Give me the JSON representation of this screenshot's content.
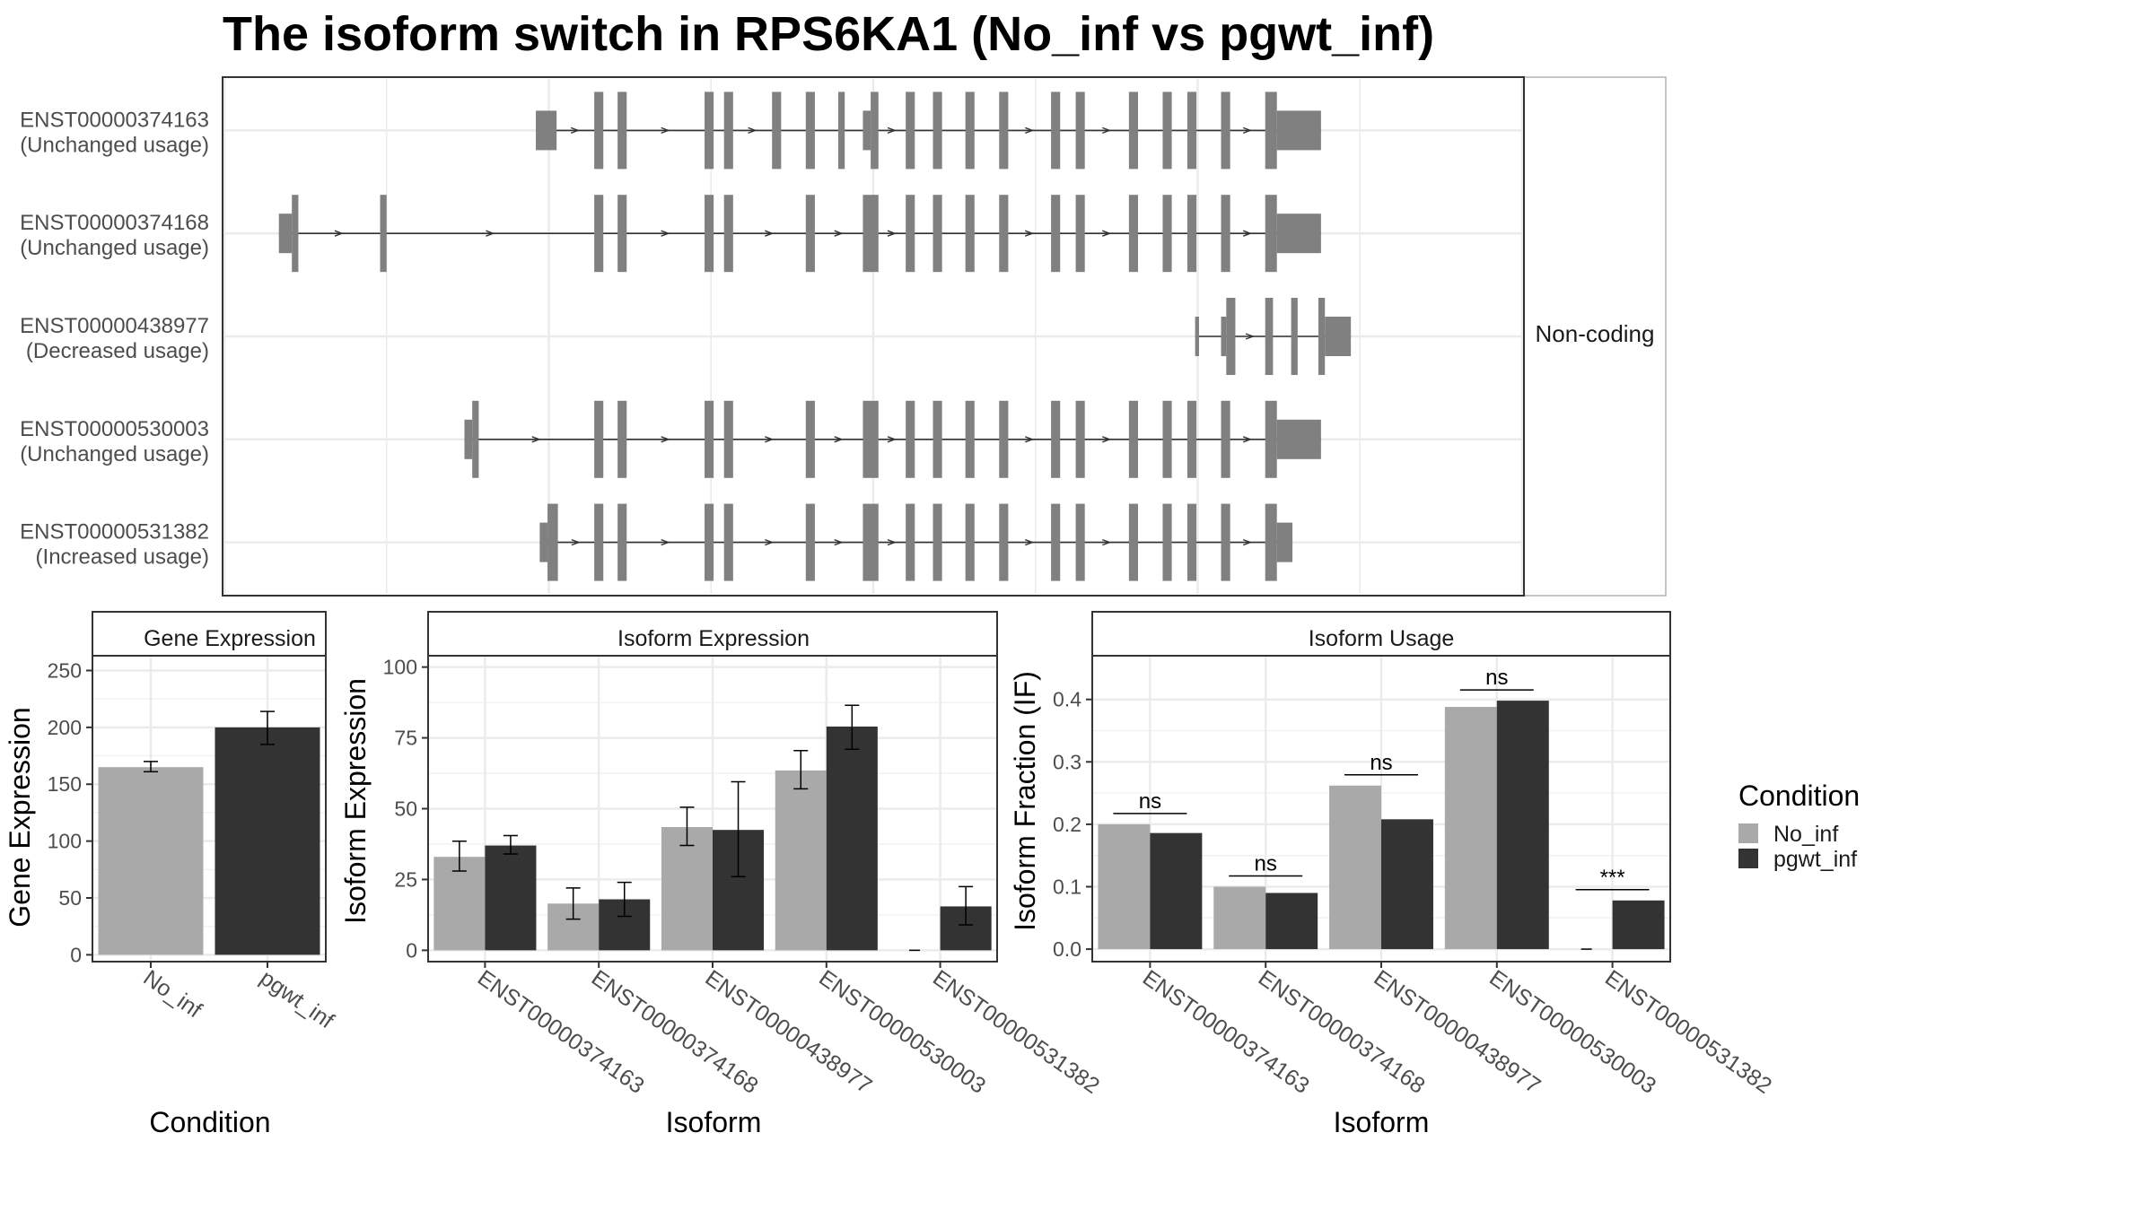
{
  "title": "The isoform switch in RPS6KA1 (No_inf vs pgwt_inf)",
  "colors": {
    "No_inf": "#a9a9a9",
    "pgwt_inf": "#333333",
    "exon": "#808080"
  },
  "structure": {
    "strip_label": "Non-coding",
    "x_extent": [
      0,
      1000
    ],
    "isoforms": [
      {
        "id": "ENST00000374163",
        "usage": "(Unchanged usage)",
        "coding": true,
        "exons": [
          [
            240,
            256,
            0
          ],
          [
            285,
            292,
            1
          ],
          [
            303,
            310,
            1
          ],
          [
            370,
            377,
            1
          ],
          [
            385,
            392,
            1
          ],
          [
            422,
            429,
            1
          ],
          [
            448,
            455,
            1
          ],
          [
            473,
            478,
            1
          ],
          [
            492,
            498,
            0
          ],
          [
            498,
            504,
            1
          ],
          [
            525,
            532,
            1
          ],
          [
            546,
            553,
            1
          ],
          [
            571,
            578,
            1
          ],
          [
            597,
            604,
            1
          ],
          [
            637,
            644,
            1
          ],
          [
            656,
            663,
            1
          ],
          [
            697,
            704,
            1
          ],
          [
            723,
            730,
            1
          ],
          [
            742,
            749,
            1
          ],
          [
            768,
            775,
            1
          ],
          [
            802,
            811,
            1
          ],
          [
            811,
            845,
            0
          ]
        ]
      },
      {
        "id": "ENST00000374168",
        "usage": "(Unchanged usage)",
        "coding": true,
        "exons": [
          [
            42,
            52,
            0
          ],
          [
            52,
            57,
            1
          ],
          [
            120,
            125,
            1
          ],
          [
            285,
            292,
            1
          ],
          [
            303,
            310,
            1
          ],
          [
            370,
            377,
            1
          ],
          [
            385,
            392,
            1
          ],
          [
            448,
            455,
            1
          ],
          [
            492,
            504,
            1
          ],
          [
            525,
            532,
            1
          ],
          [
            546,
            553,
            1
          ],
          [
            571,
            578,
            1
          ],
          [
            597,
            604,
            1
          ],
          [
            637,
            644,
            1
          ],
          [
            656,
            663,
            1
          ],
          [
            697,
            704,
            1
          ],
          [
            723,
            730,
            1
          ],
          [
            742,
            749,
            1
          ],
          [
            768,
            775,
            1
          ],
          [
            802,
            811,
            1
          ],
          [
            811,
            845,
            0
          ]
        ]
      },
      {
        "id": "ENST00000438977",
        "usage": "(Decreased usage)",
        "coding": false,
        "exons": [
          [
            748,
            751,
            0
          ],
          [
            768,
            772,
            0
          ],
          [
            772,
            779,
            1
          ],
          [
            802,
            808,
            1
          ],
          [
            822,
            827,
            1
          ],
          [
            843,
            848,
            1
          ],
          [
            848,
            868,
            0
          ]
        ]
      },
      {
        "id": "ENST00000530003",
        "usage": "(Unchanged usage)",
        "coding": true,
        "exons": [
          [
            185,
            191,
            0
          ],
          [
            191,
            196,
            1
          ],
          [
            285,
            292,
            1
          ],
          [
            303,
            310,
            1
          ],
          [
            370,
            377,
            1
          ],
          [
            385,
            392,
            1
          ],
          [
            448,
            455,
            1
          ],
          [
            492,
            504,
            1
          ],
          [
            525,
            532,
            1
          ],
          [
            546,
            553,
            1
          ],
          [
            571,
            578,
            1
          ],
          [
            597,
            604,
            1
          ],
          [
            637,
            644,
            1
          ],
          [
            656,
            663,
            1
          ],
          [
            697,
            704,
            1
          ],
          [
            723,
            730,
            1
          ],
          [
            742,
            749,
            1
          ],
          [
            768,
            775,
            1
          ],
          [
            802,
            811,
            1
          ],
          [
            811,
            845,
            0
          ]
        ]
      },
      {
        "id": "ENST00000531382",
        "usage": "(Increased usage)",
        "coding": true,
        "exons": [
          [
            243,
            249,
            0
          ],
          [
            249,
            257,
            1
          ],
          [
            285,
            292,
            1
          ],
          [
            303,
            310,
            1
          ],
          [
            370,
            377,
            1
          ],
          [
            385,
            392,
            1
          ],
          [
            448,
            455,
            1
          ],
          [
            492,
            504,
            1
          ],
          [
            525,
            532,
            1
          ],
          [
            546,
            553,
            1
          ],
          [
            571,
            578,
            1
          ],
          [
            597,
            604,
            1
          ],
          [
            637,
            644,
            1
          ],
          [
            656,
            663,
            1
          ],
          [
            697,
            704,
            1
          ],
          [
            723,
            730,
            1
          ],
          [
            742,
            749,
            1
          ],
          [
            768,
            775,
            1
          ],
          [
            802,
            811,
            1
          ],
          [
            811,
            823,
            0
          ]
        ]
      }
    ]
  },
  "chart_data": [
    {
      "type": "bar",
      "panel": "Gene Expression",
      "xlabel": "Condition",
      "ylabel": "Gene Expression",
      "ylim": [
        -6,
        263
      ],
      "yticks": [
        0,
        50,
        100,
        150,
        200,
        250
      ],
      "categories": [
        "No_inf",
        "pgwt_inf"
      ],
      "values": [
        165,
        200
      ],
      "errors": [
        [
          161,
          170
        ],
        [
          185,
          214
        ]
      ],
      "grid": true
    },
    {
      "type": "bar",
      "panel": "Isoform Expression",
      "xlabel": "Isoform",
      "ylabel": "Isoform Expression",
      "ylim": [
        -4,
        104
      ],
      "yticks": [
        0,
        25,
        50,
        75,
        100
      ],
      "categories": [
        "ENST00000374163",
        "ENST00000374168",
        "ENST00000438977",
        "ENST00000530003",
        "ENST00000531382"
      ],
      "series": [
        {
          "name": "No_inf",
          "values": [
            33,
            16.5,
            43.5,
            63.5,
            0
          ],
          "errors": [
            [
              28,
              38.5
            ],
            [
              11,
              22
            ],
            [
              37,
              50.5
            ],
            [
              57,
              70.5
            ],
            [
              0,
              0
            ]
          ]
        },
        {
          "name": "pgwt_inf",
          "values": [
            37,
            18,
            42.5,
            79,
            15.5
          ],
          "errors": [
            [
              34,
              40.5
            ],
            [
              12,
              24
            ],
            [
              26,
              59.5
            ],
            [
              71,
              86.5
            ],
            [
              9,
              22.5
            ]
          ]
        }
      ],
      "grid": true
    },
    {
      "type": "bar",
      "panel": "Isoform Usage",
      "xlabel": "Isoform",
      "ylabel": "Isoform Fraction (IF)",
      "ylim": [
        -0.02,
        0.47
      ],
      "yticks": [
        0.0,
        0.1,
        0.2,
        0.3,
        0.4
      ],
      "ytick_labels": [
        "0.0",
        "0.1",
        "0.2",
        "0.3",
        "0.4"
      ],
      "categories": [
        "ENST00000374163",
        "ENST00000374168",
        "ENST00000438977",
        "ENST00000530003",
        "ENST00000531382"
      ],
      "series": [
        {
          "name": "No_inf",
          "values": [
            0.2,
            0.1,
            0.262,
            0.388,
            0.0
          ]
        },
        {
          "name": "pgwt_inf",
          "values": [
            0.186,
            0.09,
            0.208,
            0.398,
            0.078
          ]
        }
      ],
      "significance": [
        "ns",
        "ns",
        "ns",
        "ns",
        "***"
      ],
      "grid": true
    }
  ],
  "legend": {
    "title": "Condition",
    "items": [
      "No_inf",
      "pgwt_inf"
    ],
    "position": "right"
  }
}
